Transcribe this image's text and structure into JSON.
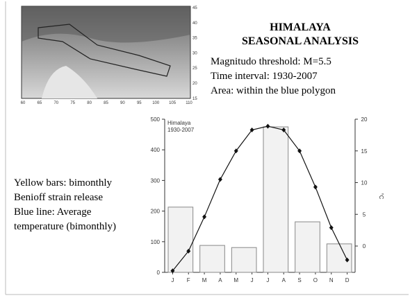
{
  "slide": {
    "title": "HIMALAYA",
    "subtitle": "SEASONAL ANALYSIS",
    "info": [
      "Magnitudo threshold: M=5.5",
      "Time interval: 1930-2007",
      "Area: within the blue polygon"
    ],
    "legend_notes": [
      "Yellow bars: bimonthly",
      "Benioff strain release",
      "Blue line: Average",
      "temperature (bimonthly)"
    ]
  },
  "map": {
    "x_labels": [
      "60",
      "65",
      "70",
      "75",
      "80",
      "85",
      "90",
      "95",
      "100",
      "105",
      "110"
    ],
    "y_labels": [
      "45",
      "40",
      "35",
      "30",
      "25",
      "20",
      "15"
    ]
  },
  "chart_data": {
    "type": "bar",
    "annotations": [
      "Himalaya",
      "1930-2007"
    ],
    "categories": [
      "J",
      "F",
      "M",
      "A",
      "M",
      "J",
      "J",
      "A",
      "S",
      "O",
      "N",
      "D"
    ],
    "series": [
      {
        "type": "bar",
        "color": "#f2f2f2",
        "values": [
          213,
          null,
          88,
          null,
          81,
          null,
          475,
          null,
          165,
          null,
          93,
          null
        ]
      },
      {
        "type": "line",
        "axis": "y2",
        "color": "#111111",
        "values": [
          -3.9,
          -0.8,
          4.6,
          10.5,
          15,
          18.3,
          18.9,
          18.3,
          15,
          9.3,
          2.9,
          -2.2
        ]
      }
    ],
    "ylim": [
      0,
      500
    ],
    "yticks": [
      0,
      100,
      200,
      300,
      400,
      500
    ],
    "y2lim": [
      -4.15,
      20
    ],
    "y2ticks": [
      0,
      5,
      10,
      15,
      20
    ],
    "y2label": "°C"
  }
}
